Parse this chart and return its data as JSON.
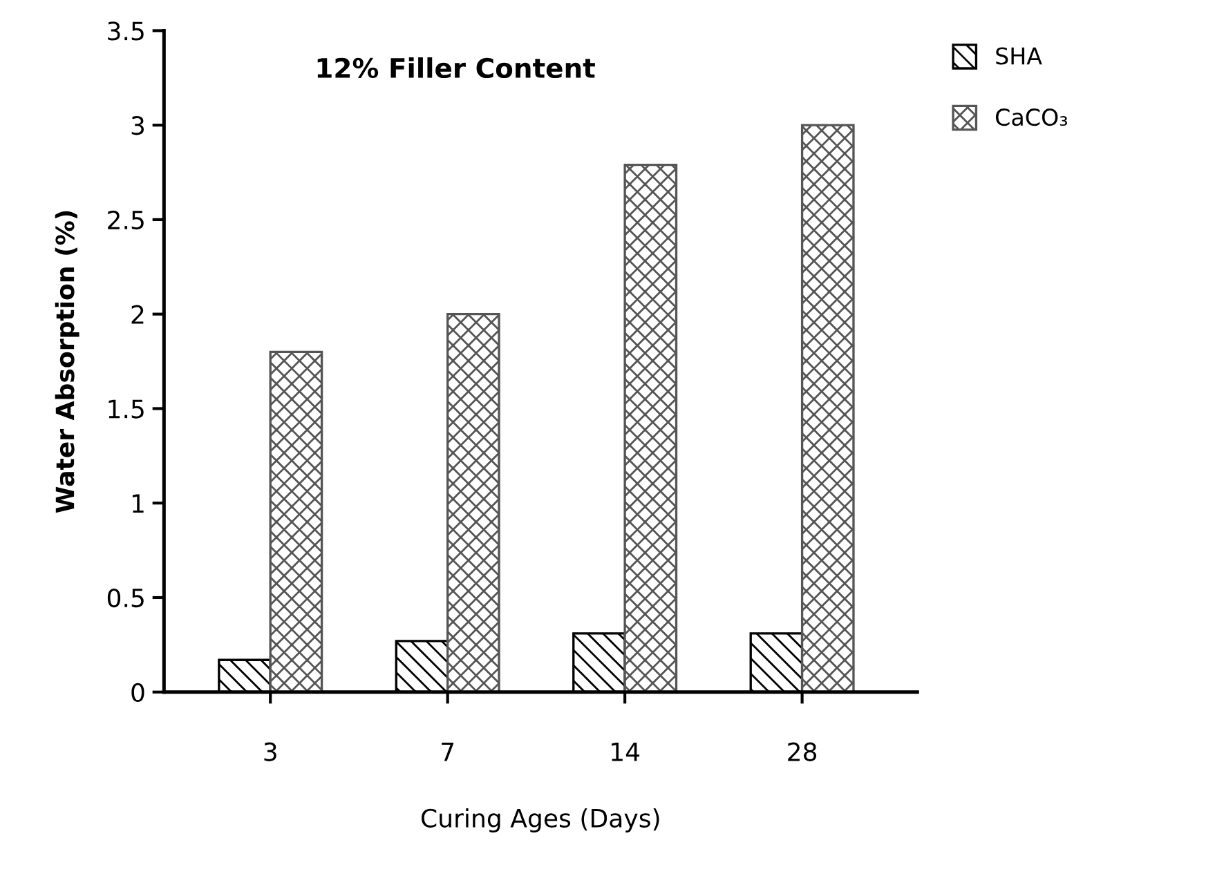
{
  "chart_data": {
    "type": "bar",
    "title": "12% Filler Content",
    "xlabel": "Curing Ages (Days)",
    "ylabel": "Water Absorption (%)",
    "categories": [
      "3",
      "7",
      "14",
      "28"
    ],
    "series": [
      {
        "name": "SHA",
        "color": "#000000",
        "values": [
          0.17,
          0.27,
          0.31,
          0.31
        ]
      },
      {
        "name": "CaCO₃",
        "color": "#555555",
        "values": [
          1.8,
          2.0,
          2.79,
          3.0
        ]
      }
    ],
    "ylim": [
      0,
      3.5
    ],
    "yticks": [
      0,
      0.5,
      1,
      1.5,
      2,
      2.5,
      3,
      3.5
    ],
    "grid": false,
    "legend": "top right"
  }
}
